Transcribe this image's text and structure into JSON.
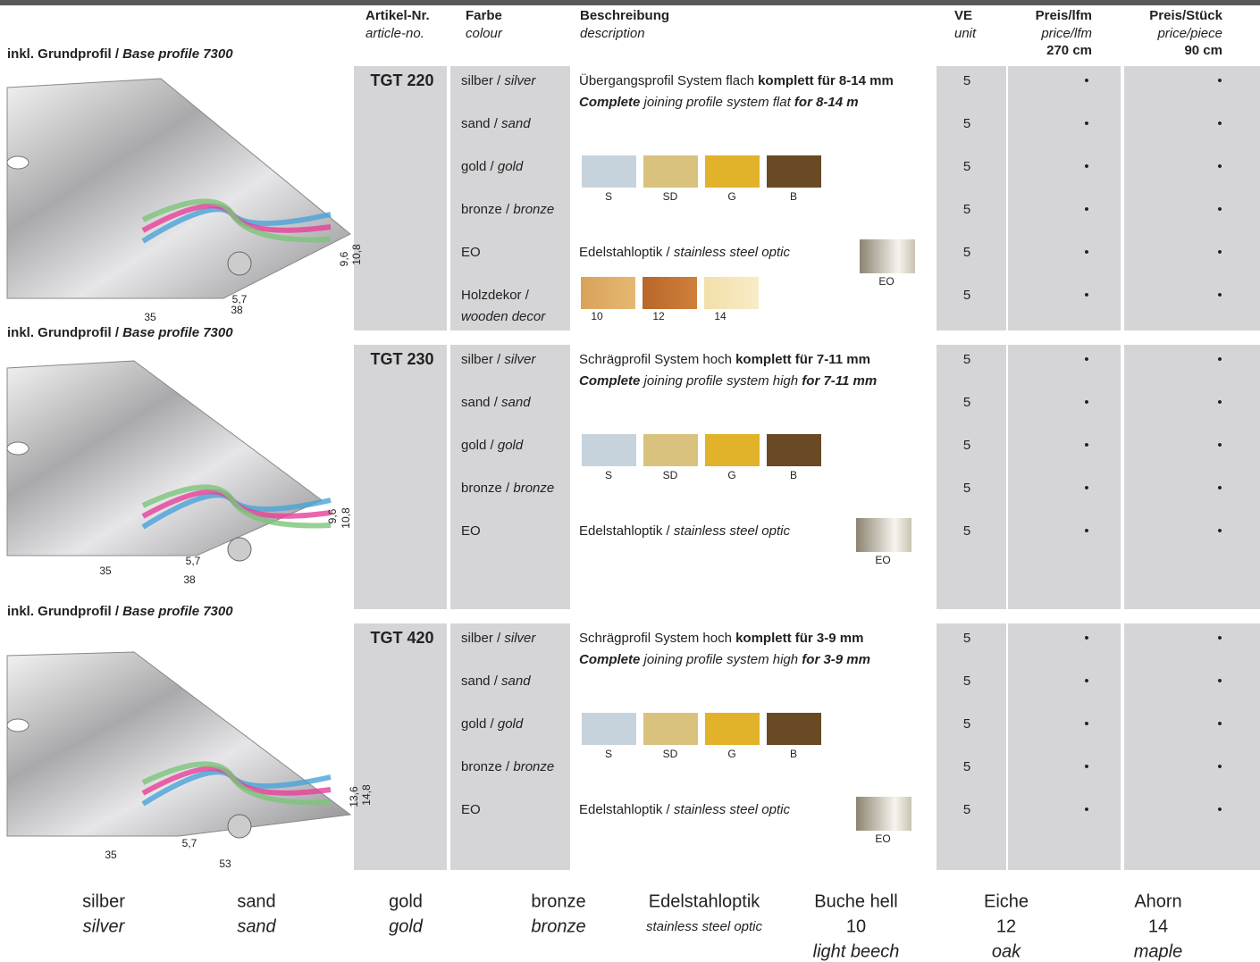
{
  "header": {
    "columns": [
      {
        "de": "Artikel-Nr.",
        "en": "article-no."
      },
      {
        "de": "Farbe",
        "en": "colour"
      },
      {
        "de": "Beschreibung",
        "en": "description"
      },
      {
        "de": "VE",
        "en": "unit"
      },
      {
        "de": "Preis/lfm",
        "en": "price/lfm",
        "length": "270 cm"
      },
      {
        "de": "Preis/Stück",
        "en": "price/piece",
        "length": "90 cm"
      }
    ]
  },
  "sections": [
    {
      "label": [
        "inkl. Grundprofil / ",
        "Base profile 7300"
      ],
      "dimensions": [
        "9,6",
        "10,8",
        "5,7",
        "35",
        "38"
      ],
      "article": "TGT 220",
      "description": [
        [
          "Übergangsprofil System flach ",
          "komplett für 8-14 mm"
        ],
        [
          "Complete",
          " joining profile system flat ",
          "for 8-14 m"
        ]
      ],
      "swatches": [
        "S",
        "SD",
        "G",
        "B"
      ],
      "eo": {
        "text": [
          "Edelstahloptik / ",
          "stainless steel optic"
        ],
        "swatch": "EO"
      },
      "wood": [
        "10",
        "12",
        "14"
      ],
      "rows": [
        {
          "colour": [
            "silber / ",
            "silver"
          ],
          "unit": 5,
          "lfm": "•",
          "piece": "•"
        },
        {
          "colour": [
            "sand / ",
            "sand"
          ],
          "unit": 5,
          "lfm": "•",
          "piece": "•"
        },
        {
          "colour": [
            "gold / ",
            "gold"
          ],
          "unit": 5,
          "lfm": "•",
          "piece": "•"
        },
        {
          "colour": [
            "bronze / ",
            "bronze"
          ],
          "unit": 5,
          "lfm": "•",
          "piece": "•"
        },
        {
          "colour": [
            "EO"
          ],
          "unit": 5,
          "lfm": "•",
          "piece": "•"
        },
        {
          "colour": [
            "Holzdekor /",
            "wooden decor"
          ],
          "unit": 5,
          "lfm": "•",
          "piece": "•"
        }
      ]
    },
    {
      "label": [
        "inkl. Grundprofil / ",
        "Base profile 7300"
      ],
      "dimensions": [
        "9,6",
        "10,8",
        "5,7",
        "35",
        "38"
      ],
      "article": "TGT 230",
      "description": [
        [
          "Schrägprofil System hoch ",
          "komplett für 7-11 mm"
        ],
        [
          "Complete",
          " joining profile system high ",
          "for 7-11 mm"
        ]
      ],
      "swatches": [
        "S",
        "SD",
        "G",
        "B"
      ],
      "eo": {
        "text": [
          "Edelstahloptik / ",
          "stainless steel optic"
        ],
        "swatch": "EO"
      },
      "rows": [
        {
          "colour": [
            "silber / ",
            "silver"
          ],
          "unit": 5,
          "lfm": "•",
          "piece": "•"
        },
        {
          "colour": [
            "sand / ",
            "sand"
          ],
          "unit": 5,
          "lfm": "•",
          "piece": "•"
        },
        {
          "colour": [
            "gold / ",
            "gold"
          ],
          "unit": 5,
          "lfm": "•",
          "piece": "•"
        },
        {
          "colour": [
            "bronze / ",
            "bronze"
          ],
          "unit": 5,
          "lfm": "•",
          "piece": "•"
        },
        {
          "colour": [
            "EO"
          ],
          "unit": 5,
          "lfm": "•",
          "piece": "•"
        }
      ]
    },
    {
      "label": [
        "inkl. Grundprofil / ",
        "Base profile 7300"
      ],
      "dimensions": [
        "13,6",
        "14,8",
        "5,7",
        "35",
        "53"
      ],
      "article": "TGT 420",
      "description": [
        [
          "Schrägprofil System hoch ",
          "komplett für 3-9 mm"
        ],
        [
          "Complete",
          " joining profile system high ",
          "for 3-9 mm"
        ]
      ],
      "swatches": [
        "S",
        "SD",
        "G",
        "B"
      ],
      "eo": {
        "text": [
          "Edelstahloptik / ",
          "stainless steel optic"
        ],
        "swatch": "EO"
      },
      "rows": [
        {
          "colour": [
            "silber / ",
            "silver"
          ],
          "unit": 5,
          "lfm": "•",
          "piece": "•"
        },
        {
          "colour": [
            "sand / ",
            "sand"
          ],
          "unit": 5,
          "lfm": "•",
          "piece": "•"
        },
        {
          "colour": [
            "gold / ",
            "gold"
          ],
          "unit": 5,
          "lfm": "•",
          "piece": "•"
        },
        {
          "colour": [
            "bronze / ",
            "bronze"
          ],
          "unit": 5,
          "lfm": "•",
          "piece": "•"
        },
        {
          "colour": [
            "EO"
          ],
          "unit": 5,
          "lfm": "•",
          "piece": "•"
        }
      ]
    }
  ],
  "legend": [
    {
      "lines": [
        "silber",
        "silver"
      ]
    },
    {
      "lines": [
        "sand",
        "sand"
      ]
    },
    {
      "lines": [
        "gold",
        "gold"
      ]
    },
    {
      "lines": [
        "bronze",
        "bronze"
      ]
    },
    {
      "lines": [
        "Edelstahloptik",
        "stainless steel optic"
      ]
    },
    {
      "lines": [
        "Buche hell",
        "10",
        "light beech"
      ]
    },
    {
      "lines": [
        "Eiche",
        "12",
        "oak"
      ]
    },
    {
      "lines": [
        "Ahorn",
        "14",
        "maple"
      ]
    }
  ]
}
